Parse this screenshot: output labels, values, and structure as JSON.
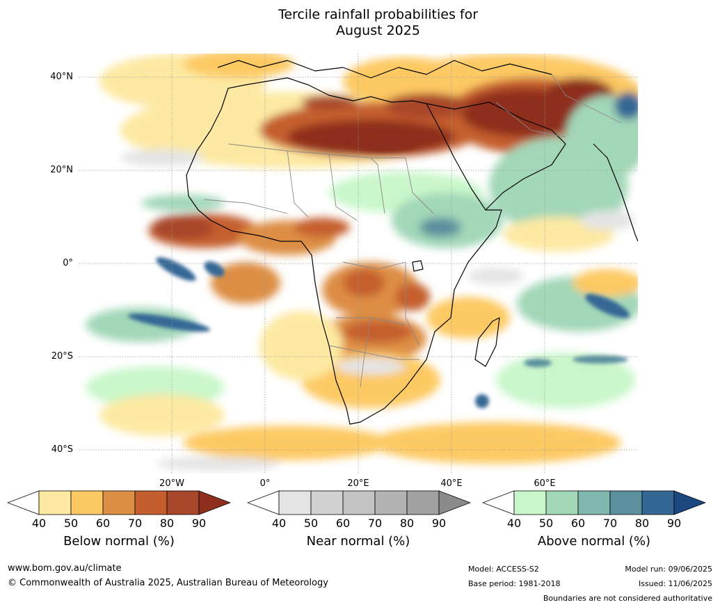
{
  "title": {
    "line1": "Tercile rainfall probabilities for",
    "line2": "August 2025"
  },
  "map": {
    "lat_labels": [
      "40°N",
      "20°N",
      "0°",
      "20°S",
      "40°S"
    ],
    "lon_labels": [
      "20°W",
      "0°",
      "20°E",
      "40°E",
      "60°E"
    ]
  },
  "legend": {
    "below": {
      "title": "Below normal (%)",
      "ticks": [
        "40",
        "50",
        "60",
        "70",
        "80",
        "90"
      ],
      "colors": [
        "#ffffff",
        "#fde9a2",
        "#fdc963",
        "#dd8e45",
        "#c55e2e",
        "#a8472a",
        "#8e2f1e"
      ]
    },
    "near": {
      "title": "Near normal (%)",
      "ticks": [
        "40",
        "50",
        "60",
        "70",
        "80",
        "90"
      ],
      "colors": [
        "#ffffff",
        "#e4e4e4",
        "#d2d2d2",
        "#c3c3c3",
        "#b3b3b3",
        "#a1a1a1",
        "#8a8a8a"
      ]
    },
    "above": {
      "title": "Above normal (%)",
      "ticks": [
        "40",
        "50",
        "60",
        "70",
        "80",
        "90"
      ],
      "colors": [
        "#ffffff",
        "#c9f7cb",
        "#a2d7b8",
        "#80b7ae",
        "#5a8f9e",
        "#356795",
        "#1c4880"
      ]
    }
  },
  "footer": {
    "url": "www.bom.gov.au/climate",
    "copyright": "© Commonwealth of Australia 2025, Australian Bureau of Meteorology",
    "model": "Model: ACCESS-S2",
    "base_period": "Base period: 1981-2018",
    "model_run": "Model run: 09/06/2025",
    "issued": "Issued: 11/06/2025",
    "disclaimer": "Boundaries are not considered authoritative"
  }
}
